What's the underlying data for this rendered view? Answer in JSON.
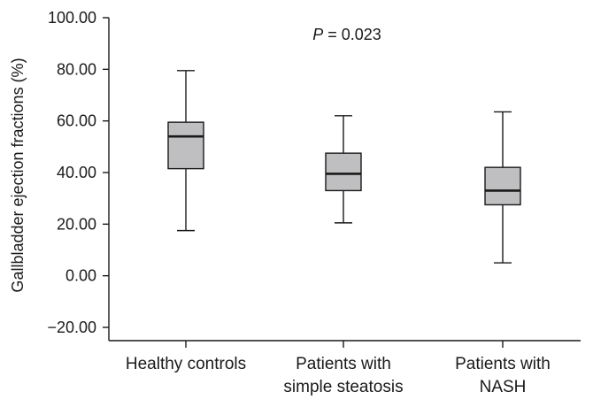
{
  "chart_data": {
    "type": "box",
    "ylabel": "Gallbladder ejection fractions (%)",
    "xlabel": "",
    "ylim": [
      -25,
      100
    ],
    "yticks": [
      100,
      80,
      60,
      40,
      20,
      0,
      -20
    ],
    "ytick_labels": [
      "100.00",
      "80.00",
      "60.00",
      "40.00",
      "20.00",
      "0.00",
      "−20.00"
    ],
    "categories": [
      {
        "label": [
          "Healthy controls"
        ],
        "min": 17.5,
        "q1": 41.5,
        "median": 54,
        "q3": 59.5,
        "max": 79.5
      },
      {
        "label": [
          "Patients with",
          "simple steatosis"
        ],
        "min": 20.5,
        "q1": 33,
        "median": 39.5,
        "q3": 47.5,
        "max": 62
      },
      {
        "label": [
          "Patients with",
          "NASH"
        ],
        "min": 5,
        "q1": 27.5,
        "median": 33,
        "q3": 42,
        "max": 63.5
      }
    ],
    "annotation": {
      "italic": "P",
      "text": " = 0.023"
    },
    "colors": {
      "box_fill": "#bfbfc1",
      "line": "#1a1a1a"
    }
  }
}
